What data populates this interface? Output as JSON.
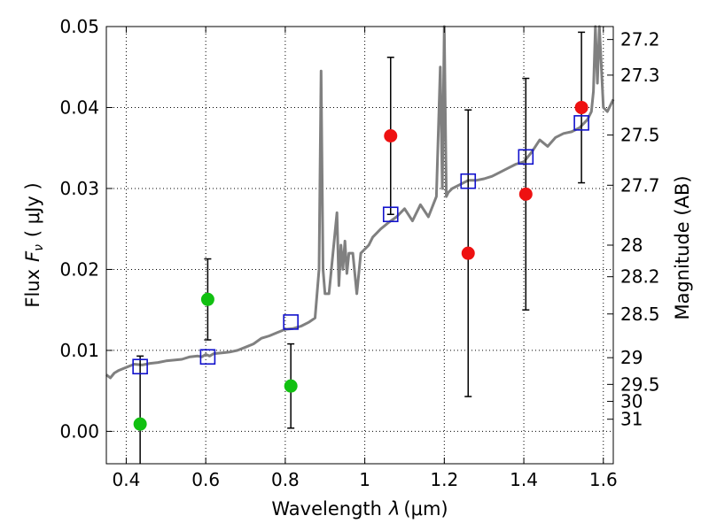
{
  "chart_data": {
    "type": "scatter",
    "xlabel": "Wavelength",
    "xlabel_symbol": "λ",
    "xlabel_unit": "(μm)",
    "ylabel": "Flux",
    "ylabel_symbol": "F",
    "ylabel_sub": "ν",
    "ylabel_unit": "( μJy )",
    "y2label": "Magnitude (AB)",
    "xlim": [
      0.35,
      1.625
    ],
    "ylim": [
      -0.004,
      0.05
    ],
    "grid": true,
    "x_ticks": [
      0.4,
      0.6,
      0.8,
      1.0,
      1.2,
      1.4,
      1.6
    ],
    "x_tick_labels": [
      "0.4",
      "0.6",
      "0.8",
      "1",
      "1.2",
      "1.4",
      "1.6"
    ],
    "y_ticks": [
      0.0,
      0.01,
      0.02,
      0.03,
      0.04,
      0.05
    ],
    "y_tick_labels": [
      "0.00",
      "0.01",
      "0.02",
      "0.03",
      "0.04",
      "0.05"
    ],
    "y2_ticks": [
      {
        "flux": 0.0484,
        "label": "27.2"
      },
      {
        "flux": 0.044,
        "label": "27.3"
      },
      {
        "flux": 0.0366,
        "label": "27.5"
      },
      {
        "flux": 0.0304,
        "label": "27.7"
      },
      {
        "flux": 0.023,
        "label": "28"
      },
      {
        "flux": 0.0191,
        "label": "28.2"
      },
      {
        "flux": 0.0145,
        "label": "28.5"
      },
      {
        "flux": 0.0091,
        "label": "29"
      },
      {
        "flux": 0.0058,
        "label": "29.5"
      },
      {
        "flux": 0.0037,
        "label": "30"
      },
      {
        "flux": 0.0015,
        "label": "31"
      }
    ],
    "series": [
      {
        "kind": "detection",
        "color": "#11c011",
        "marker": "circle",
        "points": [
          {
            "x": 0.435,
            "y": 0.0009,
            "err": 0.0084
          },
          {
            "x": 0.605,
            "y": 0.0163,
            "err": 0.005
          },
          {
            "x": 0.814,
            "y": 0.0056,
            "err": 0.0052
          }
        ]
      },
      {
        "kind": "detection",
        "color": "#ee1111",
        "marker": "circle",
        "points": [
          {
            "x": 1.065,
            "y": 0.0365,
            "err": 0.0097
          },
          {
            "x": 1.26,
            "y": 0.022,
            "err": 0.0177
          },
          {
            "x": 1.405,
            "y": 0.0293,
            "err": 0.0143
          },
          {
            "x": 1.545,
            "y": 0.04,
            "err": 0.0093
          }
        ]
      },
      {
        "kind": "model-band",
        "color": "#1111cc",
        "marker": "square",
        "points": [
          {
            "x": 0.435,
            "y": 0.008
          },
          {
            "x": 0.605,
            "y": 0.0092
          },
          {
            "x": 0.814,
            "y": 0.0135
          },
          {
            "x": 1.065,
            "y": 0.0268
          },
          {
            "x": 1.26,
            "y": 0.0309
          },
          {
            "x": 1.405,
            "y": 0.0339
          },
          {
            "x": 1.545,
            "y": 0.0381
          }
        ]
      },
      {
        "kind": "model-sed",
        "color": "#808080",
        "x": [
          0.35,
          0.36,
          0.37,
          0.38,
          0.4,
          0.42,
          0.44,
          0.46,
          0.48,
          0.5,
          0.52,
          0.54,
          0.56,
          0.58,
          0.59,
          0.6,
          0.61,
          0.62,
          0.64,
          0.66,
          0.68,
          0.7,
          0.72,
          0.74,
          0.76,
          0.78,
          0.8,
          0.82,
          0.84,
          0.86,
          0.875,
          0.885,
          0.89,
          0.895,
          0.9,
          0.91,
          0.92,
          0.93,
          0.935,
          0.94,
          0.945,
          0.95,
          0.955,
          0.96,
          0.97,
          0.98,
          0.99,
          1.0,
          1.01,
          1.02,
          1.04,
          1.06,
          1.08,
          1.1,
          1.12,
          1.14,
          1.16,
          1.18,
          1.19,
          1.195,
          1.2,
          1.205,
          1.21,
          1.22,
          1.24,
          1.26,
          1.28,
          1.3,
          1.32,
          1.34,
          1.36,
          1.38,
          1.4,
          1.42,
          1.44,
          1.46,
          1.48,
          1.5,
          1.52,
          1.54,
          1.56,
          1.57,
          1.575,
          1.58,
          1.585,
          1.59,
          1.6,
          1.61,
          1.625
        ],
        "y": [
          0.007,
          0.0066,
          0.0072,
          0.0075,
          0.0079,
          0.0083,
          0.0082,
          0.0084,
          0.0085,
          0.0087,
          0.0088,
          0.0089,
          0.0092,
          0.0093,
          0.0092,
          0.0095,
          0.0093,
          0.0096,
          0.0097,
          0.0098,
          0.01,
          0.0104,
          0.0108,
          0.0115,
          0.0118,
          0.0122,
          0.0126,
          0.0127,
          0.013,
          0.0135,
          0.014,
          0.02,
          0.0445,
          0.02,
          0.017,
          0.017,
          0.022,
          0.027,
          0.018,
          0.023,
          0.02,
          0.0235,
          0.0195,
          0.022,
          0.022,
          0.017,
          0.022,
          0.0225,
          0.023,
          0.024,
          0.025,
          0.0258,
          0.0265,
          0.0275,
          0.026,
          0.028,
          0.0265,
          0.029,
          0.045,
          0.03,
          0.052,
          0.029,
          0.0295,
          0.03,
          0.0305,
          0.031,
          0.031,
          0.0312,
          0.0315,
          0.032,
          0.0325,
          0.033,
          0.0333,
          0.0345,
          0.036,
          0.0352,
          0.0363,
          0.0368,
          0.037,
          0.0375,
          0.0385,
          0.0395,
          0.042,
          0.056,
          0.043,
          0.056,
          0.04,
          0.0395,
          0.041
        ]
      }
    ]
  }
}
